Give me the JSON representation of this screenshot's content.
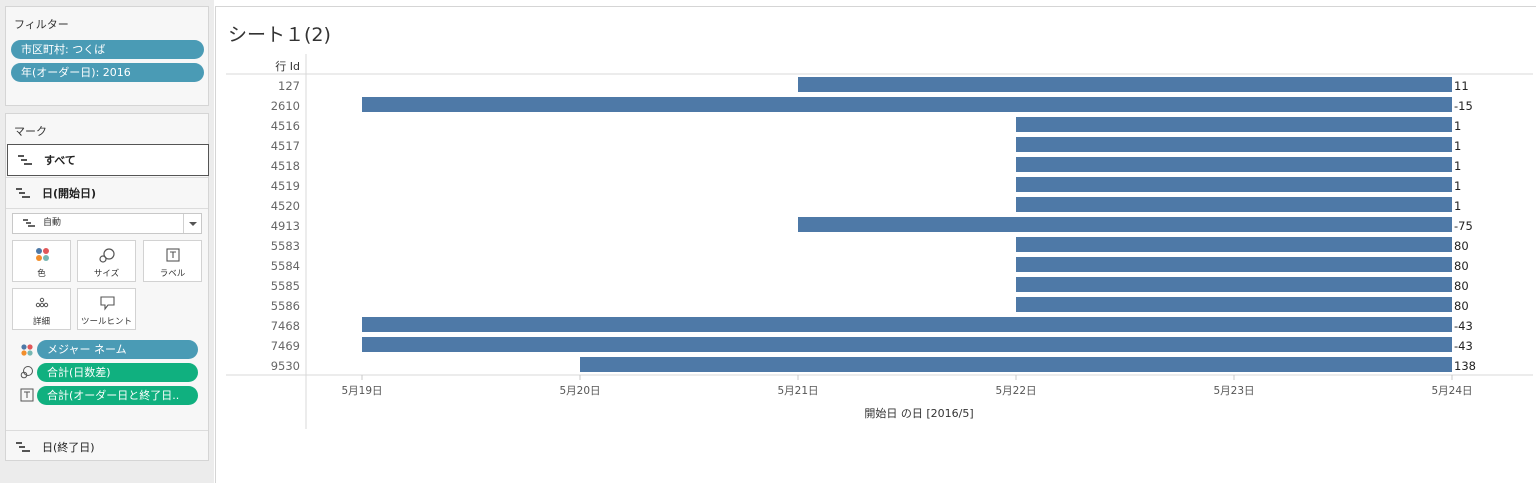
{
  "filters": {
    "title": "フィルター",
    "items": [
      "市区町村: つくば",
      "年(オーダー日): 2016"
    ]
  },
  "marks": {
    "title": "マーク",
    "all_label": "すべて",
    "start_day_label": "日(開始日)",
    "mark_type": "自動",
    "buttons": {
      "color": "色",
      "size": "サイズ",
      "label": "ラベル",
      "detail": "詳細",
      "tooltip": "ツールヒント"
    },
    "pills": [
      "メジャー ネーム",
      "合計(日数差)",
      "合計(オーダー日と終了日.."
    ],
    "end_day_label": "日(終了日)"
  },
  "sheet": {
    "title": "シート１(2)"
  },
  "colors": {
    "bar": "#4e79a7",
    "pill_blue": "#4a9bb5",
    "pill_green": "#10b07f"
  },
  "chart_data": {
    "type": "bar",
    "orientation": "horizontal-gantt",
    "row_header": "行 Id",
    "xlabel": "開始日 の日 [2016/5]",
    "x_ticks": [
      "5月19日",
      "5月20日",
      "5月21日",
      "5月22日",
      "5月23日",
      "5月24日"
    ],
    "xlim": [
      "2016-05-18",
      "2016-05-24"
    ],
    "rows": [
      {
        "id": "127",
        "start": "2016-05-21",
        "end": "2016-05-24",
        "label": "11"
      },
      {
        "id": "2610",
        "start": "2016-05-19",
        "end": "2016-05-24",
        "label": "-15"
      },
      {
        "id": "4516",
        "start": "2016-05-22",
        "end": "2016-05-24",
        "label": "1"
      },
      {
        "id": "4517",
        "start": "2016-05-22",
        "end": "2016-05-24",
        "label": "1"
      },
      {
        "id": "4518",
        "start": "2016-05-22",
        "end": "2016-05-24",
        "label": "1"
      },
      {
        "id": "4519",
        "start": "2016-05-22",
        "end": "2016-05-24",
        "label": "1"
      },
      {
        "id": "4520",
        "start": "2016-05-22",
        "end": "2016-05-24",
        "label": "1"
      },
      {
        "id": "4913",
        "start": "2016-05-21",
        "end": "2016-05-24",
        "label": "-75"
      },
      {
        "id": "5583",
        "start": "2016-05-22",
        "end": "2016-05-24",
        "label": "80"
      },
      {
        "id": "5584",
        "start": "2016-05-22",
        "end": "2016-05-24",
        "label": "80"
      },
      {
        "id": "5585",
        "start": "2016-05-22",
        "end": "2016-05-24",
        "label": "80"
      },
      {
        "id": "5586",
        "start": "2016-05-22",
        "end": "2016-05-24",
        "label": "80"
      },
      {
        "id": "7468",
        "start": "2016-05-19",
        "end": "2016-05-24",
        "label": "-43"
      },
      {
        "id": "7469",
        "start": "2016-05-19",
        "end": "2016-05-24",
        "label": "-43"
      },
      {
        "id": "9530",
        "start": "2016-05-20",
        "end": "2016-05-24",
        "label": "138"
      }
    ]
  }
}
